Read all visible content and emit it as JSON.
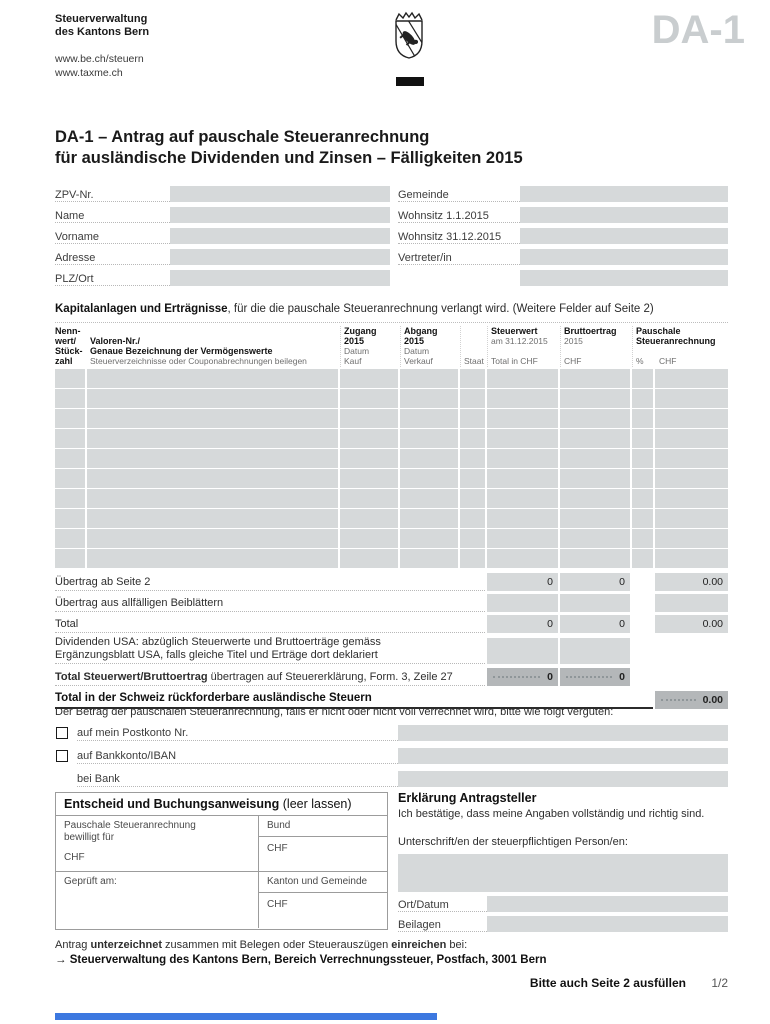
{
  "header": {
    "org_line1": "Steuerverwaltung",
    "org_line2": "des Kantons Bern",
    "url1": "www.be.ch/steuern",
    "url2": "www.taxme.ch",
    "form_code": "DA-1"
  },
  "title": {
    "line1": "DA-1 – Antrag auf pauschale Steueranrechnung",
    "line2": "für ausländische Dividenden und Zinsen – Fälligkeiten 2015"
  },
  "personal": {
    "left": [
      {
        "label": "ZPV-Nr.",
        "value": ""
      },
      {
        "label": "Name",
        "value": ""
      },
      {
        "label": "Vorname",
        "value": ""
      },
      {
        "label": "Adresse",
        "value": ""
      },
      {
        "label": "PLZ/Ort",
        "value": ""
      }
    ],
    "right": [
      {
        "label": "Gemeinde",
        "value": ""
      },
      {
        "label": "Wohnsitz 1.1.2015",
        "value": ""
      },
      {
        "label": "Wohnsitz 31.12.2015",
        "value": ""
      },
      {
        "label": "Vertreter/in",
        "value": ""
      },
      {
        "label": "",
        "value": ""
      }
    ]
  },
  "section": {
    "heading_bold": "Kapitalanlagen und Erträgnisse",
    "heading_rest": ", für die die pauschale Steueranrechnung verlangt wird. (Weitere Felder auf Seite 2)"
  },
  "table": {
    "header": {
      "c1": [
        "Nenn-",
        "wert/",
        "Stück-",
        "zahl"
      ],
      "c2_bold1": "Valoren-Nr./",
      "c2_bold2": "Genaue Bezeichnung der Vermögenswerte",
      "c2_sub": "Steuerverzeichnisse oder Couponabrechnungen beilegen",
      "c3": [
        "Zugang",
        "2015",
        "Datum",
        "Kauf"
      ],
      "c4": [
        "Abgang",
        "2015",
        "Datum",
        "Verkauf"
      ],
      "c5": "Staat",
      "c6_bold": "Steuerwert",
      "c6_sub": "am 31.12.2015",
      "c6_unit": "Total in CHF",
      "c7_bold": "Bruttoertrag",
      "c7_sub": "2015",
      "c7_unit": "CHF",
      "c8_bold1": "Pauschale",
      "c8_bold2": "Steueranrechnung",
      "c8_pct": "%",
      "c8_unit": "CHF"
    },
    "empty_rows": 10,
    "totals": {
      "uebertrag_seite2": {
        "label": "Übertrag ab Seite 2",
        "steuerwert": "0",
        "bruttoertrag": "0",
        "pauschale": "0.00"
      },
      "uebertrag_beiblaetter": {
        "label": "Übertrag aus allfälligen Beiblättern",
        "steuerwert": "",
        "bruttoertrag": "",
        "pauschale": ""
      },
      "total": {
        "label": "Total",
        "steuerwert": "0",
        "bruttoertrag": "0",
        "pauschale": "0.00"
      },
      "dividenden_usa": {
        "label_line1": "Dividenden USA: abzüglich Steuerwerte und Bruttoerträge gemäss",
        "label_line2": "Ergänzungsblatt USA, falls gleiche Titel und Erträge dort deklariert",
        "steuerwert": "",
        "bruttoertrag": ""
      },
      "total_steuerwert": {
        "label_bold": "Total Steuerwert/Bruttoertrag",
        "label_rest": " übertragen auf Steuererklärung, Form. 3, Zeile 27",
        "steuerwert": "0",
        "bruttoertrag": "0"
      },
      "total_schweiz": {
        "label": "Total in der Schweiz rückforderbare ausländische Steuern",
        "pauschale": "0.00"
      }
    }
  },
  "payment": {
    "intro": "Der Betrag der pauschalen Steueranrechnung, falls er nicht oder nicht voll verrechnet wird, bitte wie folgt vergüten:",
    "postkonto_label": "auf mein Postkonto Nr.",
    "postkonto_value": "",
    "bankkonto_label": "auf Bankkonto/IBAN",
    "bankkonto_value": "",
    "bank_label": "bei Bank",
    "bank_value": ""
  },
  "entscheid": {
    "title": "Entscheid und Buchungsanweisung",
    "title_note": " (leer lassen)",
    "left1_line1": "Pauschale Steueranrechnung",
    "left1_line2": "bewilligt für",
    "left1_chf": "CHF",
    "right1_label": "Bund",
    "right1_chf": "CHF",
    "left2": "Geprüft am:",
    "right2_label": "Kanton und Gemeinde",
    "right2_chf": "CHF"
  },
  "erklaerung": {
    "title": "Erklärung Antragsteller",
    "statement": "Ich bestätige, dass meine Angaben vollständig und richtig sind.",
    "signature_label": "Unterschrift/en der steuerpflichtigen Person/en:",
    "signature_value": "",
    "ort_datum_label": "Ort/Datum",
    "ort_datum_value": "",
    "beilagen_label": "Beilagen",
    "beilagen_value": ""
  },
  "footer": {
    "submit_pre": "Antrag ",
    "submit_bold1": "unterzeichnet",
    "submit_mid": " zusammen mit Belegen oder Steuerauszügen ",
    "submit_bold2": "einreichen",
    "submit_post": " bei:",
    "arrow": "→ ",
    "address": "Steuerverwaltung des Kantons Bern, Bereich Verrechnungssteuer, Postfach, 3001 Bern",
    "page_note": "Bitte auch Seite 2 ausfüllen",
    "page_number": "1/2"
  },
  "colors": {
    "field_gray": "#d6d9da",
    "total_dark_gray": "#b4b7b9",
    "logo_gray": "#c9cdcf",
    "accent_blue": "#3c78e0"
  }
}
